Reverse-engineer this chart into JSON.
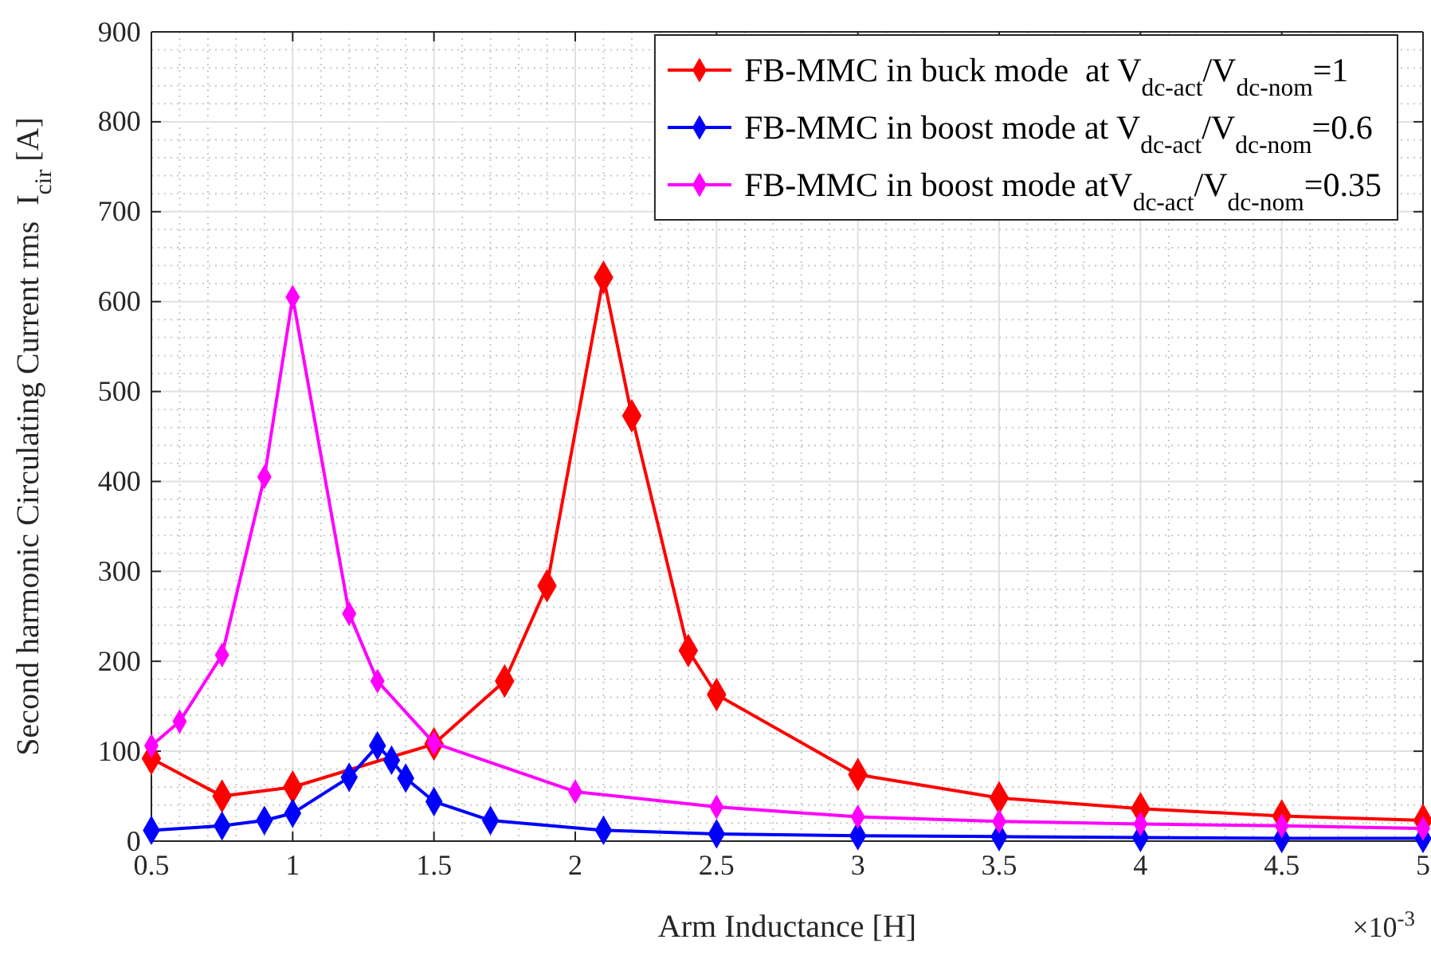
{
  "chart_data": {
    "type": "line",
    "xlabel": "Arm Inductance [H]",
    "ylabel": "Second harmonic Circulating Current rms  I$_{cir}$ [A]",
    "annotations": [
      "×10$^{-3}$"
    ],
    "xlim": [
      0.5,
      5
    ],
    "xticks": [
      0.5,
      1,
      1.5,
      2,
      2.5,
      3,
      3.5,
      4,
      4.5,
      5
    ],
    "ylim": [
      0,
      900
    ],
    "yticks": [
      0,
      100,
      200,
      300,
      400,
      500,
      600,
      700,
      800,
      900
    ],
    "grid": true,
    "legend": "top right",
    "marker": "diamond",
    "line_style": "solid",
    "series": [
      {
        "name": "FB-MMC in buck mode  at V$_{dc-act}$/V$_{dc-nom}$=1",
        "color": "#ff0000",
        "x": [
          0.5,
          0.75,
          1,
          1.5,
          1.75,
          1.9,
          2.1,
          2.2,
          2.4,
          2.5,
          3,
          3.5,
          4,
          4.5,
          5
        ],
        "values": [
          92,
          50,
          60,
          108,
          178,
          284,
          627,
          473,
          212,
          163,
          74,
          48,
          36,
          28,
          23
        ]
      },
      {
        "name": "FB-MMC in boost mode at V$_{dc-act}$/V$_{dc-nom}$=0.6",
        "color": "#0000ff",
        "x": [
          0.5,
          0.75,
          0.9,
          1,
          1.2,
          1.3,
          1.35,
          1.4,
          1.5,
          1.7,
          2.1,
          2.5,
          3,
          3.5,
          4,
          4.5,
          5
        ],
        "values": [
          12,
          17,
          23,
          31,
          71,
          106,
          90,
          70,
          44,
          23,
          12,
          8,
          6,
          5,
          4,
          3,
          3
        ]
      },
      {
        "name": "FB-MMC in boost mode atV$_{dc-act}$/V$_{dc-nom}$=0.35",
        "color": "#ff00ff",
        "x": [
          0.5,
          0.6,
          0.75,
          0.9,
          1,
          1.2,
          1.3,
          1.5,
          2,
          2.5,
          3,
          3.5,
          4,
          4.5,
          5
        ],
        "values": [
          106,
          133,
          207,
          405,
          605,
          253,
          178,
          109,
          55,
          38,
          27,
          22,
          19,
          17,
          14
        ]
      }
    ]
  }
}
